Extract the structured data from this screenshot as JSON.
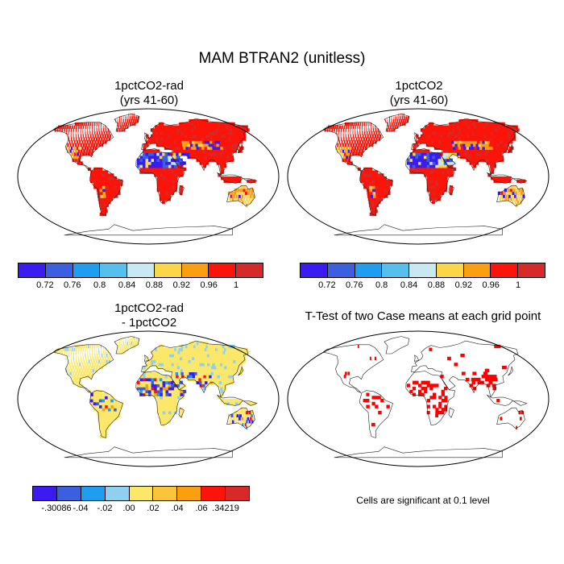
{
  "title": "MAM BTRAN2 (unitless)",
  "panels": [
    {
      "id": "p1",
      "title_line1": "1pctCO2-rad",
      "title_line2": "(yrs 41-60)"
    },
    {
      "id": "p2",
      "title_line1": "1pctCO2",
      "title_line2": "(yrs 41-60)"
    },
    {
      "id": "p3",
      "title_line1": "1pctCO2-rad",
      "title_line2": "- 1pctCO2"
    },
    {
      "id": "p4",
      "title_line1": "T-Test of two Case means at each grid point",
      "title_line2": ""
    }
  ],
  "colorbar_top": {
    "colors": [
      "#3a1cf0",
      "#3c5fe0",
      "#1f9ef0",
      "#55c0ee",
      "#c8e8f4",
      "#fbd64a",
      "#fb9f12",
      "#fb1409",
      "#d62a2a"
    ],
    "labels": [
      "0.72",
      "0.76",
      "0.8",
      "0.84",
      "0.88",
      "0.92",
      "0.96",
      "1"
    ]
  },
  "colorbar_bottom": {
    "colors": [
      "#3a1cf0",
      "#3c5fe0",
      "#1f9ef0",
      "#8fd0ee",
      "#fbe86a",
      "#fbc53a",
      "#fb9f12",
      "#fb1409",
      "#d62a2a"
    ],
    "labels": [
      "-.30086",
      "-.04",
      "-.02",
      ".00",
      ".02",
      ".04",
      ".06",
      ".34219"
    ]
  },
  "significance_note": "Cells are significant at 0.1 level",
  "colors": {
    "land_outline": "#222222",
    "significant": "#ff0000"
  }
}
